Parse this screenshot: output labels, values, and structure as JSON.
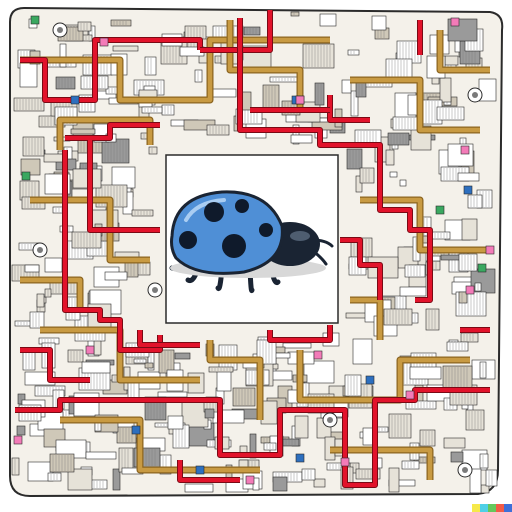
{
  "image": {
    "description_style": "Illustration of a blue ladybug at the center of a dense circuit-board / pipe maze",
    "subject_icon": "ladybug-icon",
    "colors": {
      "background": "#ffffff",
      "board_outline": "#2b2b2b",
      "trace_red": "#e2132b",
      "pipe_tan": "#c89a42",
      "pipe_tan_dark": "#8c6520",
      "detail_gray": "#7a7a7a",
      "accent_pink": "#f37bb8",
      "accent_green": "#3aa860",
      "accent_blue": "#2d6fbf",
      "bug_body": "#4f8fd6",
      "bug_body_dark": "#2f5f9a",
      "bug_head": "#1a2433",
      "bug_spots": "#0f1a2b"
    },
    "corner_strip_colors": [
      "#f6e94a",
      "#4fd0e6",
      "#65c85b",
      "#f25b47",
      "#3e6fd8"
    ]
  }
}
